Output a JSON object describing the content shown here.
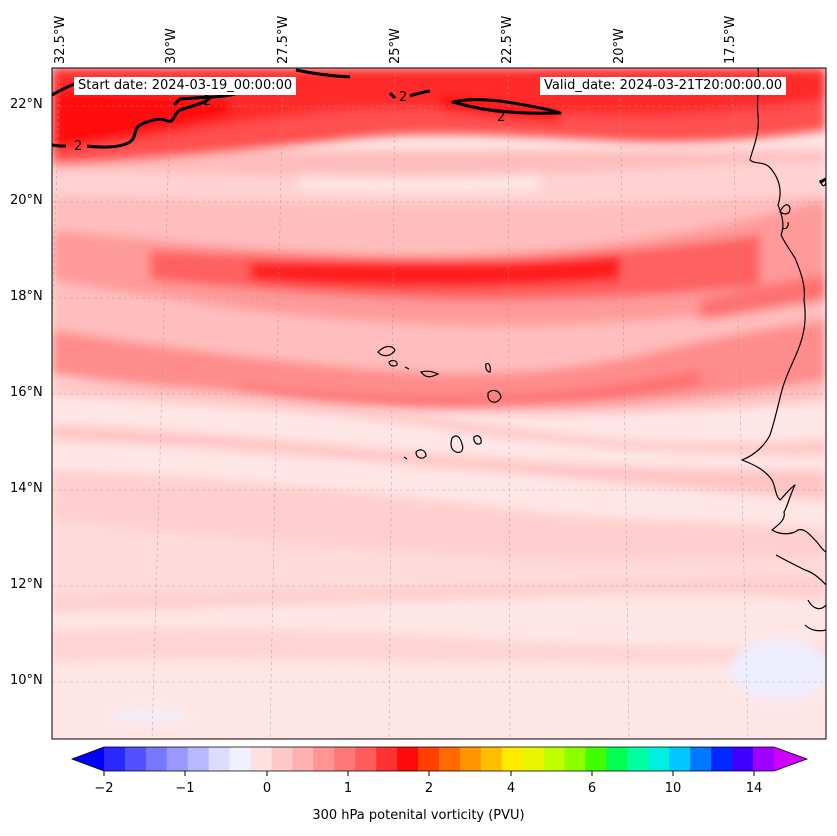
{
  "header": {
    "start_date": "Start date: 2024-03-19_00:00:00",
    "valid_date": "Valid_date: 2024-03-21T20:00:00.00"
  },
  "longitude_labels": [
    "32.5°W",
    "30°W",
    "27.5°W",
    "25°W",
    "22.5°W",
    "20°W",
    "17.5°W"
  ],
  "latitude_labels": [
    "22°N",
    "20°N",
    "18°N",
    "16°N",
    "14°N",
    "12°N",
    "10°N"
  ],
  "contour_labels": [
    "2",
    "2",
    "2",
    "2"
  ],
  "colorbar": {
    "title": "300 hPa potenital vorticity (PVU)",
    "tick_labels": [
      "−2",
      "−1",
      "0",
      "1",
      "2",
      "4",
      "6",
      "10",
      "14"
    ],
    "colors": [
      "#0000ff",
      "#2828ff",
      "#5050ff",
      "#7878ff",
      "#9898ff",
      "#b8b8ff",
      "#dcdcff",
      "#f0f0ff",
      "#ffe0e0",
      "#ffc8c8",
      "#ffb0b0",
      "#ff9494",
      "#ff7878",
      "#ff5c5c",
      "#ff3232",
      "#ff0a0a",
      "#ff4000",
      "#ff6a00",
      "#ff9600",
      "#ffbe00",
      "#ffea00",
      "#e8f500",
      "#c0ff00",
      "#8cff00",
      "#40ff00",
      "#00ff50",
      "#00ffa0",
      "#00f0e0",
      "#00c8ff",
      "#0078ff",
      "#0028ff",
      "#4000ff",
      "#a000ff",
      "#d000ff"
    ]
  },
  "chart_data": {
    "type": "heatmap",
    "title": "",
    "variable": "300 hPa potenital vorticity (PVU)",
    "lon_range": [
      "32.5°W",
      "16°W"
    ],
    "lat_range": [
      "9°N",
      "22.7°N"
    ],
    "contour_level_drawn": 2,
    "bands": [
      {
        "lat": "22°N",
        "pv": 2.0
      },
      {
        "lat": "21°N",
        "pv": 1.6
      },
      {
        "lat": "20°N",
        "pv": 1.2
      },
      {
        "lat": "19°N",
        "pv": 1.2
      },
      {
        "lat": "18.5°N",
        "pv": 1.9
      },
      {
        "lat": "17°N",
        "pv": 1.3
      },
      {
        "lat": "16°N",
        "pv": 1.0
      },
      {
        "lat": "15°N",
        "pv": 0.2
      },
      {
        "lat": "14°N",
        "pv": 0.5
      },
      {
        "lat": "12°N",
        "pv": 0.4
      },
      {
        "lat": "10°N",
        "pv": 0.2
      }
    ],
    "colormap": "blue-white-red-rainbow",
    "grid": true
  }
}
